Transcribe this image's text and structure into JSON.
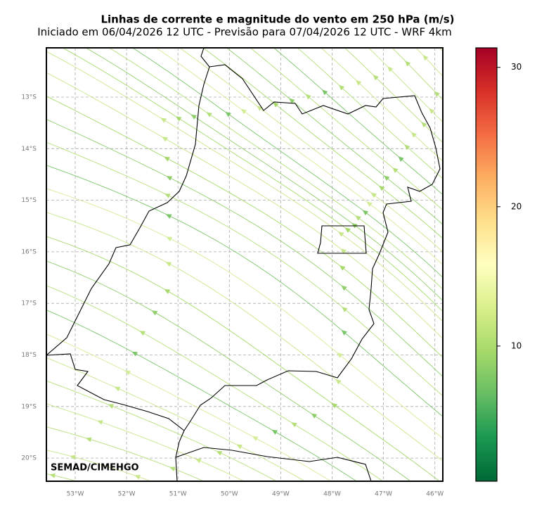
{
  "header": {
    "title": "Linhas de corrente e magnitude do vento em 250 hPa (m/s)",
    "subtitle": "Iniciado em 06/04/2026 12 UTC - Previsão para 07/04/2026 12 UTC - WRF 4km"
  },
  "map": {
    "lon_ticks": [
      {
        "value": -53,
        "label": "53°W"
      },
      {
        "value": -52,
        "label": "52°W"
      },
      {
        "value": -51,
        "label": "51°W"
      },
      {
        "value": -50,
        "label": "50°W"
      },
      {
        "value": -49,
        "label": "49°W"
      },
      {
        "value": -48,
        "label": "48°W"
      },
      {
        "value": -47,
        "label": "47°W"
      },
      {
        "value": -46,
        "label": "46°W"
      }
    ],
    "lat_ticks": [
      {
        "value": -13,
        "label": "13°S"
      },
      {
        "value": -14,
        "label": "14°S"
      },
      {
        "value": -15,
        "label": "15°S"
      },
      {
        "value": -16,
        "label": "16°S"
      },
      {
        "value": -17,
        "label": "17°S"
      },
      {
        "value": -18,
        "label": "18°S"
      },
      {
        "value": -19,
        "label": "19°S"
      },
      {
        "value": -20,
        "label": "20°S"
      }
    ],
    "credit": "SEMAD/CIMEHGO"
  },
  "colorbar": {
    "lim": [
      0.3,
      31.4
    ],
    "ticks": [
      10,
      20,
      30
    ]
  }
}
